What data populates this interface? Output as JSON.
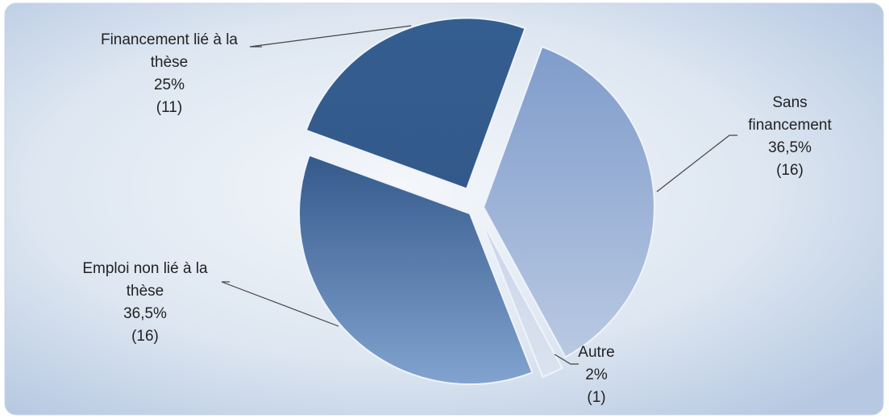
{
  "chart_data": {
    "type": "pie",
    "categories": [
      "Sans financement",
      "Autre",
      "Emploi non lié à la thèse",
      "Financement lié à la thèse"
    ],
    "values": [
      36.5,
      2,
      36.5,
      25
    ],
    "value_labels": [
      "36,5%",
      "2%",
      "36,5%",
      "25%"
    ],
    "count_labels": [
      "(16)",
      "(1)",
      "(16)",
      "(11)"
    ],
    "colors": [
      "#9fb5d9",
      "#d3dcec",
      "#5c7fae",
      "#345e90"
    ]
  }
}
